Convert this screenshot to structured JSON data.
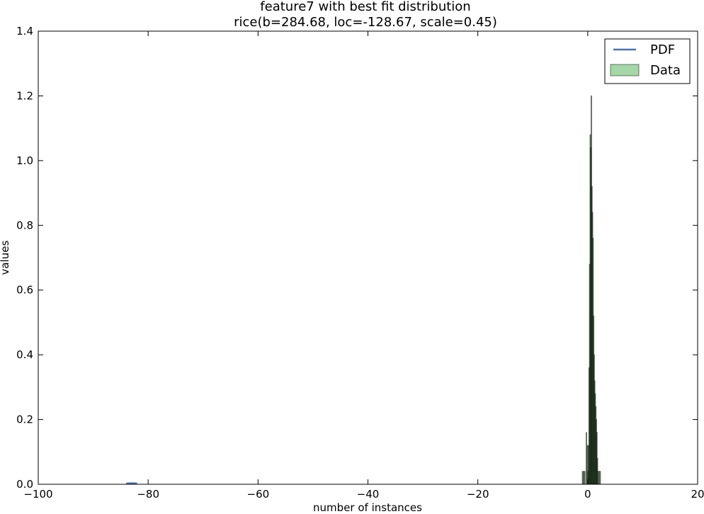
{
  "chart_data": {
    "type": "bar",
    "title": "feature7 with best fit distribution",
    "subtitle": "rice(b=284.68, loc=-128.67, scale=0.45)",
    "xlabel": "number of instances",
    "ylabel": "values",
    "xlim": [
      -100,
      20
    ],
    "ylim": [
      0,
      1.4
    ],
    "xticks": [
      -100,
      -80,
      -60,
      -40,
      -20,
      0,
      20
    ],
    "yticks": [
      0.0,
      0.2,
      0.4,
      0.6,
      0.8,
      1.0,
      1.2,
      1.4
    ],
    "xtick_labels": [
      "−100",
      "−80",
      "−60",
      "−40",
      "−20",
      "0",
      "20"
    ],
    "ytick_labels": [
      "0.0",
      "0.2",
      "0.4",
      "0.6",
      "0.8",
      "1.0",
      "1.2",
      "1.4"
    ],
    "grid": false,
    "legend": {
      "position": "top-right",
      "entries": [
        "PDF",
        "Data"
      ]
    },
    "colors": {
      "pdf": "#4c72b0",
      "data_fill": "#2ca02c",
      "data_edge": "#000000"
    },
    "series": [
      {
        "name": "PDF",
        "type": "line",
        "x": [
          -84.0,
          -83.5,
          -83.0,
          -82.5,
          -82.0
        ],
        "y": [
          0.002,
          0.003,
          0.003,
          0.003,
          0.002
        ]
      },
      {
        "name": "Data",
        "type": "histogram",
        "bin_width": 0.1,
        "bins": [
          {
            "x": -1.0,
            "y": 0.04
          },
          {
            "x": -0.8,
            "y": 0.04
          },
          {
            "x": -0.6,
            "y": 0.04
          },
          {
            "x": -0.4,
            "y": 0.0
          },
          {
            "x": -0.3,
            "y": 0.16
          },
          {
            "x": -0.1,
            "y": 0.12
          },
          {
            "x": 0.0,
            "y": 0.04
          },
          {
            "x": 0.1,
            "y": 0.12
          },
          {
            "x": 0.2,
            "y": 0.36
          },
          {
            "x": 0.3,
            "y": 0.68
          },
          {
            "x": 0.4,
            "y": 1.08
          },
          {
            "x": 0.5,
            "y": 1.04
          },
          {
            "x": 0.6,
            "y": 1.2
          },
          {
            "x": 0.7,
            "y": 0.92
          },
          {
            "x": 0.8,
            "y": 0.84
          },
          {
            "x": 0.9,
            "y": 0.76
          },
          {
            "x": 1.0,
            "y": 0.52
          },
          {
            "x": 1.1,
            "y": 0.4
          },
          {
            "x": 1.2,
            "y": 0.32
          },
          {
            "x": 1.3,
            "y": 0.28
          },
          {
            "x": 1.4,
            "y": 0.24
          },
          {
            "x": 1.5,
            "y": 0.2
          },
          {
            "x": 1.6,
            "y": 0.16
          },
          {
            "x": 1.7,
            "y": 0.08
          },
          {
            "x": 1.8,
            "y": 0.04
          },
          {
            "x": 2.0,
            "y": 0.04
          },
          {
            "x": 2.2,
            "y": 0.04
          }
        ]
      }
    ]
  }
}
